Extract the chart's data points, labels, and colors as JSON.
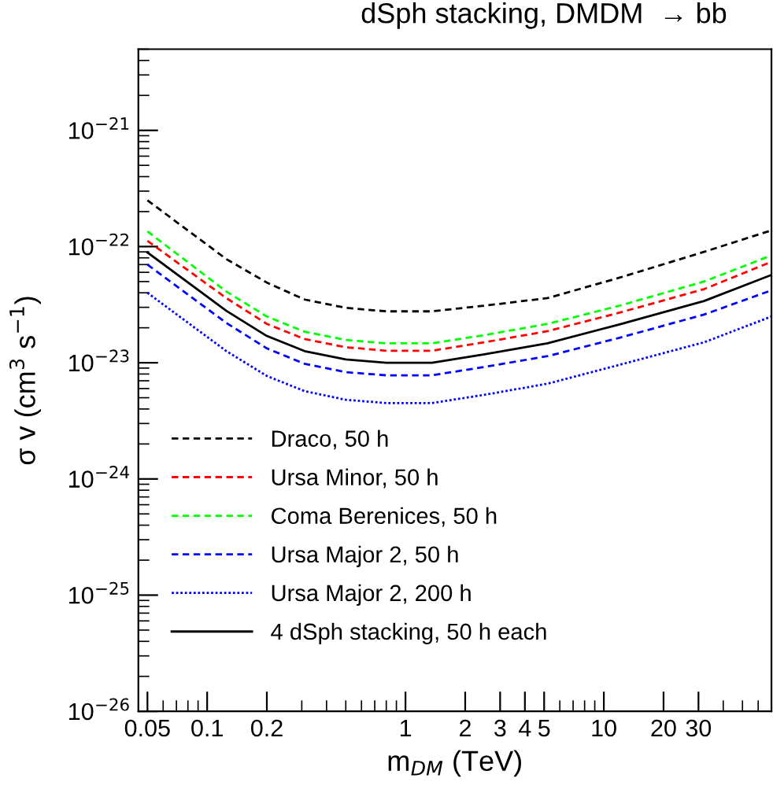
{
  "chart_data": {
    "type": "line",
    "title": "dSph stacking, DMDM  → bb",
    "xlabel": "m$_{DM}$ (TeV)",
    "ylabel": "σ v (cm$^{3}$ s$^{−1}$)",
    "x": [
      0.05,
      0.125,
      0.2,
      0.31,
      0.5,
      0.8,
      1.36,
      2.5,
      5.2,
      12,
      32,
      70
    ],
    "series": [
      {
        "name": "Draco, 50 h",
        "color": "#000000",
        "line_style": "dashed",
        "values": [
          2.5e-22,
          7.8e-23,
          4.9e-23,
          3.5e-23,
          2.97e-23,
          2.77e-23,
          2.77e-23,
          3.1e-23,
          3.6e-23,
          5.4e-23,
          9e-23,
          1.38e-22
        ]
      },
      {
        "name": "Ursa Minor, 50 h",
        "color": "#ff0000",
        "line_style": "dashed",
        "values": [
          1.12e-22,
          3.6e-23,
          2.16e-23,
          1.6e-23,
          1.36e-23,
          1.27e-23,
          1.27e-23,
          1.5e-23,
          1.87e-23,
          2.7e-23,
          4.3e-23,
          7.4e-23
        ]
      },
      {
        "name": "Coma Berenices, 50 h",
        "color": "#00ff00",
        "line_style": "dashed",
        "values": [
          1.35e-22,
          4.1e-23,
          2.5e-23,
          1.85e-23,
          1.57e-23,
          1.47e-23,
          1.47e-23,
          1.73e-23,
          2.16e-23,
          3.1e-23,
          5e-23,
          8.4e-23
        ]
      },
      {
        "name": "Ursa Major 2, 50 h",
        "color": "#0000ff",
        "line_style": "dashed",
        "values": [
          7e-23,
          2.2e-23,
          1.33e-23,
          9.8e-24,
          8.3e-24,
          7.8e-24,
          7.8e-24,
          9.2e-24,
          1.14e-23,
          1.64e-23,
          2.6e-23,
          4.2e-23
        ]
      },
      {
        "name": "Ursa Major 2, 200 h",
        "color": "#0000ff",
        "line_style": "dotted",
        "values": [
          4e-23,
          1.26e-23,
          7.7e-24,
          5.7e-24,
          4.8e-24,
          4.5e-24,
          4.5e-24,
          5.3e-24,
          6.6e-24,
          9.6e-24,
          1.5e-23,
          2.5e-23
        ]
      },
      {
        "name": "4 dSph stacking, 50 h each",
        "color": "#000000",
        "line_style": "solid",
        "values": [
          8.9e-23,
          2.8e-23,
          1.7e-23,
          1.26e-23,
          1.07e-23,
          1e-23,
          1e-23,
          1.18e-23,
          1.47e-23,
          2.14e-23,
          3.4e-23,
          5.7e-23
        ]
      }
    ],
    "log": "xy",
    "xlim": [
      0.045,
      70
    ],
    "ylim": [
      1e-26,
      5e-21
    ],
    "xticks": [
      0.05,
      0.1,
      0.2,
      1,
      2,
      3,
      4,
      5,
      10,
      20,
      30
    ],
    "yticks": [
      {
        "value": 1e-26,
        "label": "10$^{−26}$"
      },
      {
        "value": 1e-25,
        "label": "10$^{−25}$"
      },
      {
        "value": 1e-24,
        "label": "10$^{−24}$"
      },
      {
        "value": 1e-23,
        "label": "10$^{−23}$"
      },
      {
        "value": 1e-22,
        "label": "10$^{−22}$"
      },
      {
        "value": 1e-21,
        "label": "10$^{−21}$"
      }
    ],
    "grid": false,
    "legend": "bottom left",
    "marker": "none"
  }
}
